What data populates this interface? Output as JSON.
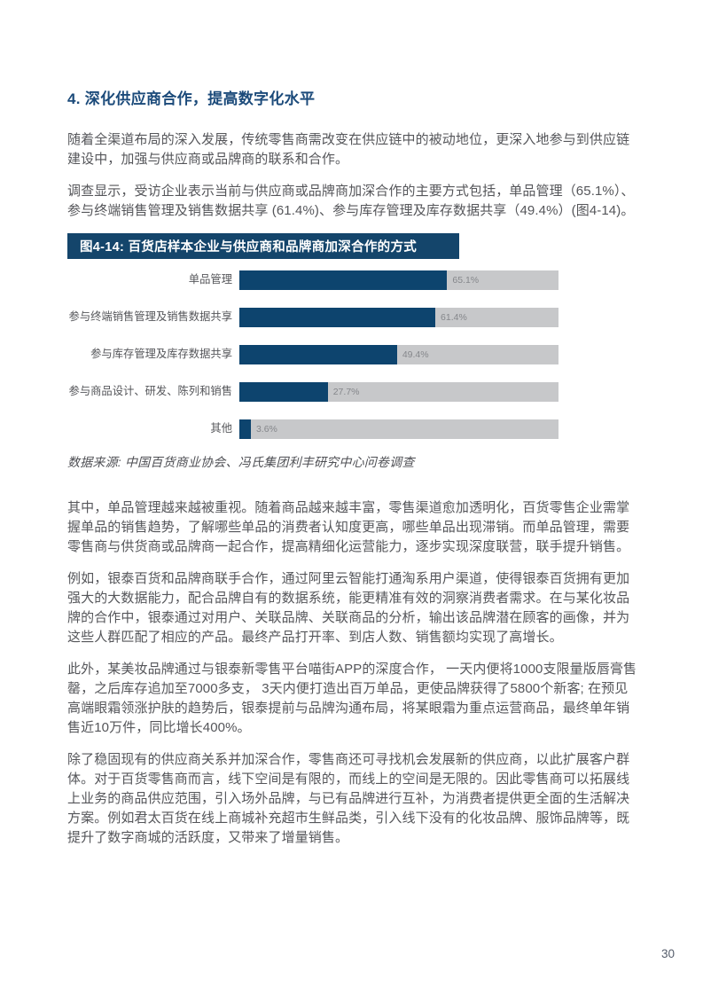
{
  "page": {
    "number": "30"
  },
  "section": {
    "heading": "4. 深化供应商合作，提高数字化水平",
    "intro_paragraphs": [
      "随着全渠道布局的深入发展，传统零售商需改变在供应链中的被动地位，更深入地参与到供应链建设中，加强与供应商或品牌商的联系和合作。",
      "调查显示，受访企业表示当前与供应商或品牌商加深合作的主要方式包括，单品管理（65.1%）、参与终端销售管理及销售数据共享 (61.4%)、参与库存管理及库存数据共享（49.4%）(图4-14)。"
    ],
    "body_paragraphs": [
      "其中，单品管理越来越被重视。随着商品越来越丰富，零售渠道愈加透明化，百货零售企业需掌握单品的销售趋势，了解哪些单品的消费者认知度更高，哪些单品出现滞销。而单品管理，需要零售商与供货商或品牌商一起合作，提高精细化运营能力，逐步实现深度联营，联手提升销售。",
      "例如，银泰百货和品牌商联手合作，通过阿里云智能打通淘系用户渠道，使得银泰百货拥有更加强大的大数据能力，配合品牌自有的数据系统，能更精准有效的洞察消费者需求。在与某化妆品牌的合作中，银泰通过对用户、关联品牌、关联商品的分析，输出该品牌潜在顾客的画像，并为这些人群匹配了相应的产品。最终产品打开率、到店人数、销售额均实现了高增长。",
      "此外，某美妆品牌通过与银泰新零售平台喵街APP的深度合作， 一天内便将1000支限量版唇膏售罄，之后库存追加至7000多支， 3天内便打造出百万单品，更使品牌获得了5800个新客; 在预见高端眼霜领涨护肤的趋势后，银泰提前与品牌沟通布局，将某眼霜为重点运营商品，最终单年销售近10万件，同比增长400%。",
      "除了稳固现有的供应商关系并加深合作，零售商还可寻找机会发展新的供应商，以此扩展客户群体。对于百货零售商而言，线下空间是有限的，而线上的空间是无限的。因此零售商可以拓展线上业务的商品供应范围，引入场外品牌，与已有品牌进行互补，为消费者提供更全面的生活解决方案。例如君太百货在线上商城补充超市生鲜品类，引入线下没有的化妆品牌、服饰品牌等，既提升了数字商城的活跃度，又带来了增量销售。"
    ]
  },
  "chart_data": {
    "type": "bar",
    "orientation": "horizontal",
    "title": "图4-14: 百货店样本企业与供应商和品牌商加深合作的方式",
    "categories": [
      "单品管理",
      "参与终端销售管理及销售数据共享",
      "参与库存管理及库存数据共享",
      "参与商品设计、研发、陈列和销售",
      "其他"
    ],
    "values": [
      65.1,
      61.4,
      49.4,
      27.7,
      3.6
    ],
    "value_labels": [
      "65.1%",
      "61.4%",
      "49.4%",
      "27.7%",
      "3.6%"
    ],
    "xlim": [
      0,
      100
    ],
    "grid": false,
    "legend": "none",
    "bar_color": "#0d446e",
    "track_color": "#c7c8ca",
    "source": "数据来源: 中国百货商业协会、冯氏集团利丰研究中心问卷调查"
  },
  "colors": {
    "heading_blue": "#1b4a7a",
    "figure_title_bg": "#14456b",
    "body_text": "#55565a",
    "value_label_gray": "#85878b"
  }
}
